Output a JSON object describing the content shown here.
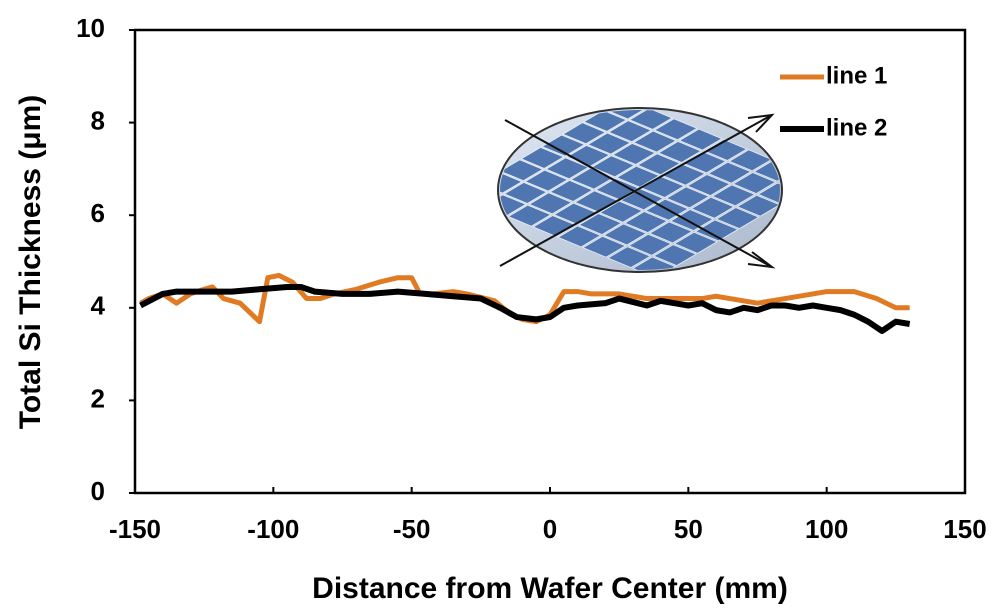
{
  "chart_data": {
    "type": "line",
    "xlabel": "Distance from Wafer Center (mm)",
    "ylabel": "Total Si Thickness (μm)",
    "xlim": [
      -150,
      150
    ],
    "xticks": [
      -150,
      -100,
      -50,
      0,
      50,
      100,
      150
    ],
    "ylim": [
      0,
      10
    ],
    "yticks": [
      0,
      2,
      4,
      6,
      8,
      10
    ],
    "legend": "upper right",
    "series": [
      {
        "name": "line 1",
        "color": "#e07b24",
        "x": [
          -148,
          -145,
          -140,
          -135,
          -130,
          -125,
          -122,
          -118,
          -112,
          -105,
          -102,
          -98,
          -93,
          -88,
          -83,
          -78,
          -70,
          -62,
          -55,
          -50,
          -47,
          -42,
          -35,
          -30,
          -20,
          -15,
          -10,
          -5,
          0,
          5,
          10,
          15,
          25,
          35,
          45,
          55,
          60,
          65,
          75,
          85,
          95,
          100,
          110,
          118,
          125,
          130
        ],
        "values": [
          4.1,
          4.2,
          4.3,
          4.1,
          4.3,
          4.4,
          4.45,
          4.2,
          4.1,
          3.7,
          4.65,
          4.7,
          4.55,
          4.2,
          4.2,
          4.3,
          4.4,
          4.55,
          4.65,
          4.65,
          4.3,
          4.3,
          4.35,
          4.3,
          4.15,
          3.9,
          3.75,
          3.7,
          3.85,
          4.35,
          4.35,
          4.3,
          4.3,
          4.2,
          4.2,
          4.2,
          4.25,
          4.2,
          4.1,
          4.2,
          4.3,
          4.35,
          4.35,
          4.2,
          4.0,
          4.0
        ]
      },
      {
        "name": "line 2",
        "color": "#000000",
        "x": [
          -148,
          -140,
          -135,
          -125,
          -115,
          -105,
          -95,
          -90,
          -85,
          -75,
          -65,
          -55,
          -45,
          -35,
          -25,
          -18,
          -12,
          -5,
          0,
          5,
          10,
          20,
          25,
          35,
          40,
          45,
          50,
          55,
          60,
          65,
          70,
          75,
          80,
          85,
          90,
          95,
          100,
          105,
          110,
          115,
          120,
          125,
          130
        ],
        "values": [
          4.05,
          4.3,
          4.35,
          4.35,
          4.35,
          4.4,
          4.45,
          4.45,
          4.35,
          4.3,
          4.3,
          4.35,
          4.3,
          4.25,
          4.2,
          4.0,
          3.8,
          3.75,
          3.8,
          4.0,
          4.05,
          4.1,
          4.2,
          4.05,
          4.15,
          4.1,
          4.05,
          4.1,
          3.95,
          3.9,
          4.0,
          3.95,
          4.05,
          4.05,
          4.0,
          4.05,
          4.0,
          3.95,
          3.85,
          3.7,
          3.5,
          3.7,
          3.65
        ]
      }
    ]
  }
}
